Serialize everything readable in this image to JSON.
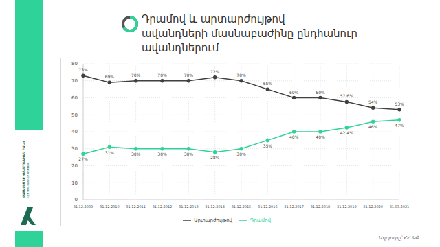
{
  "chart_data": {
    "type": "line",
    "title": "Դրամով և արտարժույթով ավանդների մասնաբաժինը ընդհանուր ավանդներում",
    "categories": [
      "31.12.2009",
      "31.12.2010",
      "31.12.2011",
      "31.12.2012",
      "31.12.2013",
      "31.12.2014",
      "31.12.2015",
      "31.12.2016",
      "31.12.2017",
      "31.12.2018",
      "31.12.2019",
      "31.12.2020",
      "31.03.2021"
    ],
    "series": [
      {
        "name": "Դրամով",
        "color": "#2fd39a",
        "marker": "circle",
        "values": [
          27,
          31,
          30,
          30,
          30,
          28,
          30,
          35,
          40,
          40,
          42.4,
          46,
          47
        ],
        "value_labels": [
          "27%",
          "31%",
          "30%",
          "30%",
          "30%",
          "28%",
          "30%",
          "35%",
          "40%",
          "40%",
          "42.4%",
          "46%",
          "47%"
        ]
      },
      {
        "name": "Արտարժույթով",
        "color": "#404040",
        "marker": "circle",
        "values": [
          73,
          69,
          70,
          70,
          70,
          72,
          70,
          65,
          60,
          60,
          57.6,
          54,
          53
        ],
        "value_labels": [
          "73%",
          "69%",
          "70%",
          "70%",
          "70%",
          "72%",
          "70%",
          "65%",
          "60%",
          "60%",
          "57.6%",
          "54%",
          "53%"
        ]
      }
    ],
    "ylim": [
      0,
      80
    ],
    "yticks": [
      0,
      10,
      20,
      30,
      40,
      50,
      60,
      70,
      80
    ],
    "grid": true,
    "legend": "bottom",
    "data_labels": true,
    "source": "Աղբյուրը՝ ՀՀ ԿԲ",
    "logo": [
      "ՀԱՅԱՍՏԱՆԻ ԿԵՆՏՐՈՆԱԿԱՆ ԲԱՆԿ",
      "CENTRAL BANK OF ARMENIA"
    ]
  }
}
